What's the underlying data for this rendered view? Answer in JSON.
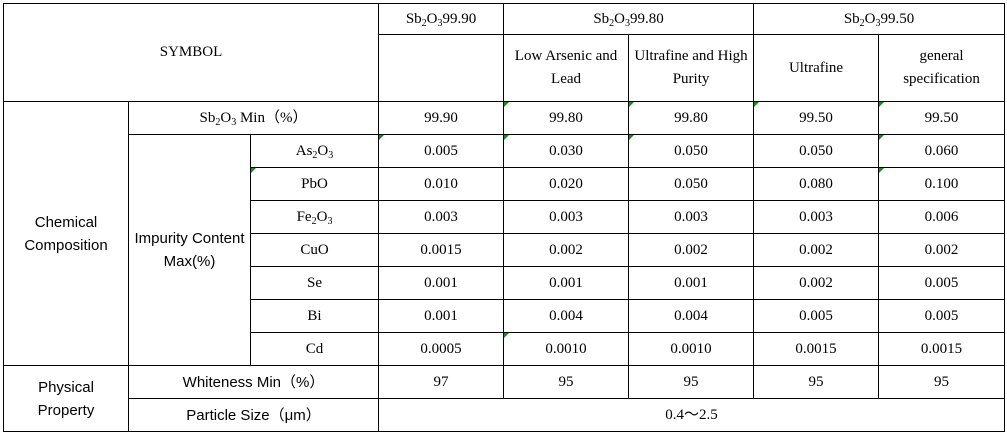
{
  "header": {
    "symbol": "SYMBOL",
    "groups": [
      {
        "formula": [
          "Sb",
          "2",
          "O",
          "3",
          "99.90"
        ]
      },
      {
        "formula": [
          "Sb",
          "2",
          "O",
          "3",
          "99.80"
        ]
      },
      {
        "formula": [
          "Sb",
          "2",
          "O",
          "3",
          "99.50"
        ]
      }
    ],
    "subheaders": [
      "Low Arsenic and Lead",
      "Ultrafine and High Purity",
      "Ultrafine",
      "general specification"
    ]
  },
  "chemical": {
    "label": "Chemical Composition",
    "min_row": {
      "label": [
        "Sb",
        "2",
        "O",
        "3",
        " Min（%）"
      ],
      "values": [
        "99.90",
        "99.80",
        "99.80",
        "99.50",
        "99.50"
      ]
    },
    "impurity_label": "Impurity Content Max(%)",
    "impurities": [
      {
        "name": [
          "As",
          "2",
          "O",
          "3"
        ],
        "values": [
          "0.005",
          "0.030",
          "0.050",
          "0.050",
          "0.060"
        ]
      },
      {
        "name": [
          "PbO"
        ],
        "values": [
          "0.010",
          "0.020",
          "0.050",
          "0.080",
          "0.100"
        ]
      },
      {
        "name": [
          "Fe",
          "2",
          "O",
          "3"
        ],
        "values": [
          "0.003",
          "0.003",
          "0.003",
          "0.003",
          "0.006"
        ]
      },
      {
        "name": [
          "CuO"
        ],
        "values": [
          "0.0015",
          "0.002",
          "0.002",
          "0.002",
          "0.002"
        ]
      },
      {
        "name": [
          "Se"
        ],
        "values": [
          "0.001",
          "0.001",
          "0.001",
          "0.002",
          "0.005"
        ]
      },
      {
        "name": [
          "Bi"
        ],
        "values": [
          "0.001",
          "0.004",
          "0.004",
          "0.005",
          "0.005"
        ]
      },
      {
        "name": [
          "Cd"
        ],
        "values": [
          "0.0005",
          "0.0010",
          "0.0010",
          "0.0015",
          "0.0015"
        ]
      }
    ]
  },
  "physical": {
    "label": "Physical Property",
    "whiteness": {
      "label": "Whiteness Min（%）",
      "values": [
        "97",
        "95",
        "95",
        "95",
        "95"
      ]
    },
    "particle": {
      "label": "Particle Size（μm）",
      "value": "0.4～2.5"
    }
  }
}
